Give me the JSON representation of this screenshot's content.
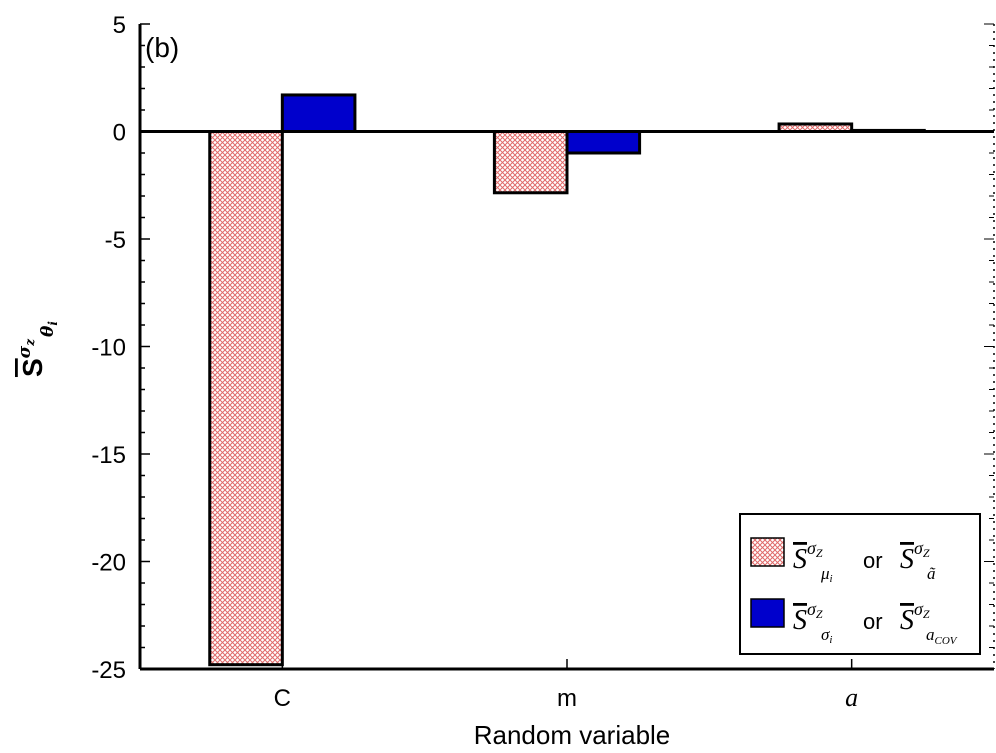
{
  "chart_data": {
    "type": "bar",
    "panel_label": "(b)",
    "xlabel": "Random variable",
    "ylabel": {
      "base": "S",
      "superscript": "σ",
      "superscript_sub": "z",
      "subscript": "θ",
      "subscript_sub": "i"
    },
    "categories": [
      "C",
      "m",
      "a"
    ],
    "category_italic": [
      false,
      false,
      true
    ],
    "ylim": [
      -25,
      5
    ],
    "yticks": [
      5,
      0,
      -5,
      -10,
      -15,
      -20,
      -25
    ],
    "ytick_labels": [
      "5",
      "0",
      "-5",
      "-10",
      "-15",
      "-20",
      "-25"
    ],
    "series": [
      {
        "name": "S̄^σZ_μi or S̄^σZ_ã",
        "legend": {
          "base": "S",
          "sup": "σ",
          "sup_sub": "Z",
          "sub": "μ",
          "sub_sub": "i",
          "sep": "or",
          "base2": "S",
          "sup2": "σ",
          "sup2_sub": "Z",
          "sub2": "ã"
        },
        "values": [
          -24.8,
          -2.85,
          0.35
        ],
        "color": "#e8a3a3",
        "pattern": "crosshatch"
      },
      {
        "name": "S̄^σZ_σi or S̄^σZ_aCOV",
        "legend": {
          "base": "S",
          "sup": "σ",
          "sup_sub": "Z",
          "sub": "σ",
          "sub_sub": "i",
          "sep": "or",
          "base2": "S",
          "sup2": "σ",
          "sup2_sub": "Z",
          "sub2": "a",
          "sub2_sub": "COV"
        },
        "values": [
          1.7,
          -1.0,
          0.05
        ],
        "color": "#0000cc",
        "pattern": "solid"
      }
    ],
    "legend_position": "bottom-right",
    "grid": false
  }
}
